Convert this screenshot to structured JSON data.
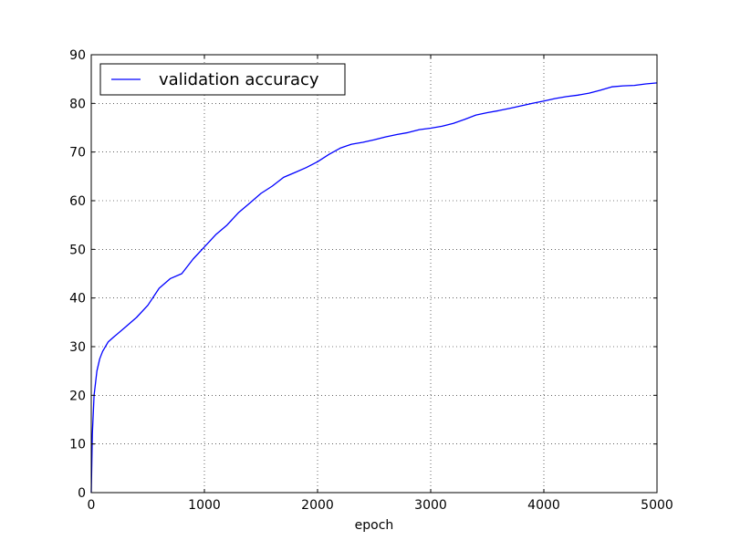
{
  "chart_data": {
    "type": "line",
    "title": "",
    "xlabel": "epoch",
    "ylabel": "",
    "xlim": [
      0,
      5000
    ],
    "ylim": [
      0,
      90
    ],
    "xticks": [
      0,
      1000,
      2000,
      3000,
      4000,
      5000
    ],
    "xtick_labels": [
      "0",
      "1000",
      "2000",
      "3000",
      "4000",
      "5000"
    ],
    "yticks": [
      0,
      10,
      20,
      30,
      40,
      50,
      60,
      70,
      80,
      90
    ],
    "ytick_labels": [
      "0",
      "10",
      "20",
      "30",
      "40",
      "50",
      "60",
      "70",
      "80",
      "90"
    ],
    "grid": true,
    "legend": {
      "position": "upper-left"
    },
    "series": [
      {
        "name": "validation accuracy",
        "color": "#0000ff",
        "x": [
          0,
          10,
          25,
          50,
          75,
          100,
          150,
          200,
          300,
          400,
          500,
          600,
          700,
          800,
          900,
          1000,
          1100,
          1200,
          1300,
          1400,
          1500,
          1600,
          1700,
          1800,
          1900,
          2000,
          2100,
          2200,
          2300,
          2400,
          2500,
          2600,
          2700,
          2800,
          2900,
          3000,
          3100,
          3200,
          3300,
          3400,
          3500,
          3600,
          3700,
          3800,
          3900,
          4000,
          4100,
          4200,
          4300,
          4400,
          4500,
          4600,
          4700,
          4800,
          4900,
          5000
        ],
        "y": [
          0,
          12,
          20,
          25,
          27.5,
          29,
          31,
          32,
          34,
          36,
          38.5,
          42,
          44,
          45,
          48,
          50.5,
          53,
          55,
          57.5,
          59.5,
          61.5,
          63,
          64.8,
          65.8,
          66.8,
          68,
          69.5,
          70.8,
          71.6,
          72,
          72.5,
          73.1,
          73.6,
          74,
          74.6,
          74.9,
          75.3,
          75.9,
          76.7,
          77.6,
          78.1,
          78.5,
          79,
          79.5,
          80,
          80.5,
          81,
          81.4,
          81.7,
          82.1,
          82.7,
          83.4,
          83.6,
          83.7,
          84,
          84.2
        ]
      }
    ]
  }
}
